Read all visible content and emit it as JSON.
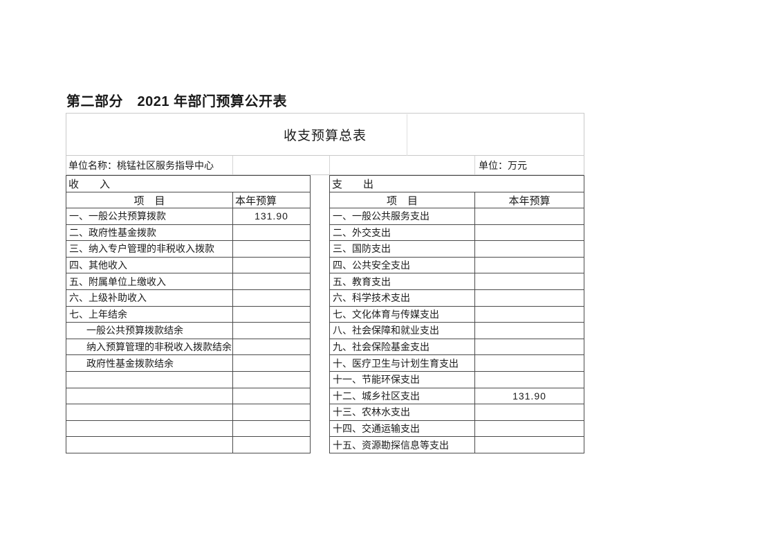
{
  "page": {
    "doc_title": "第二部分　2021 年部门预算公开表"
  },
  "table": {
    "title": "收支预算总表",
    "unit_name": "单位名称：桃锰社区服务指导中心",
    "unit": "单位：万元"
  },
  "income": {
    "section_label": "收　　入",
    "col_item": "项　目",
    "col_budget": "本年预算",
    "rows": [
      {
        "item": "一、一般公共预算拨款",
        "budget": "131.90",
        "indent": false
      },
      {
        "item": "二、政府性基金拨款",
        "budget": "",
        "indent": false
      },
      {
        "item": "三、纳入专户管理的非税收入拨款",
        "budget": "",
        "indent": false
      },
      {
        "item": "四、其他收入",
        "budget": "",
        "indent": false
      },
      {
        "item": "五、附属单位上缴收入",
        "budget": "",
        "indent": false
      },
      {
        "item": "六、上级补助收入",
        "budget": "",
        "indent": false
      },
      {
        "item": "七、上年结余",
        "budget": "",
        "indent": false
      },
      {
        "item": "一般公共预算拨款结余",
        "budget": "",
        "indent": true
      },
      {
        "item": "纳入预算管理的非税收入拨款结余",
        "budget": "",
        "indent": true
      },
      {
        "item": "政府性基金拨款结余",
        "budget": "",
        "indent": true
      },
      {
        "item": "",
        "budget": "",
        "indent": false
      },
      {
        "item": "",
        "budget": "",
        "indent": false
      },
      {
        "item": "",
        "budget": "",
        "indent": false
      },
      {
        "item": "",
        "budget": "",
        "indent": false
      },
      {
        "item": "",
        "budget": "",
        "indent": false
      }
    ]
  },
  "expense": {
    "section_label": "支　　出",
    "col_item": "项　目",
    "col_budget": "本年预算",
    "rows": [
      {
        "item": "一、一般公共服务支出",
        "budget": "",
        "indent": false
      },
      {
        "item": "二、外交支出",
        "budget": "",
        "indent": false
      },
      {
        "item": "三、国防支出",
        "budget": "",
        "indent": false
      },
      {
        "item": "四、公共安全支出",
        "budget": "",
        "indent": false
      },
      {
        "item": "五、教育支出",
        "budget": "",
        "indent": false
      },
      {
        "item": "六、科学技术支出",
        "budget": "",
        "indent": false
      },
      {
        "item": "七、文化体育与传媒支出",
        "budget": "",
        "indent": false
      },
      {
        "item": "八、社会保障和就业支出",
        "budget": "",
        "indent": false
      },
      {
        "item": "九、社会保险基金支出",
        "budget": "",
        "indent": false
      },
      {
        "item": "十、医疗卫生与计划生育支出",
        "budget": "",
        "indent": false
      },
      {
        "item": "十一、节能环保支出",
        "budget": "",
        "indent": false
      },
      {
        "item": "十二、城乡社区支出",
        "budget": "131.90",
        "indent": false
      },
      {
        "item": "十三、农林水支出",
        "budget": "",
        "indent": false
      },
      {
        "item": "十四、交通运输支出",
        "budget": "",
        "indent": false
      },
      {
        "item": "十五、资源勘探信息等支出",
        "budget": "",
        "indent": false
      }
    ]
  }
}
